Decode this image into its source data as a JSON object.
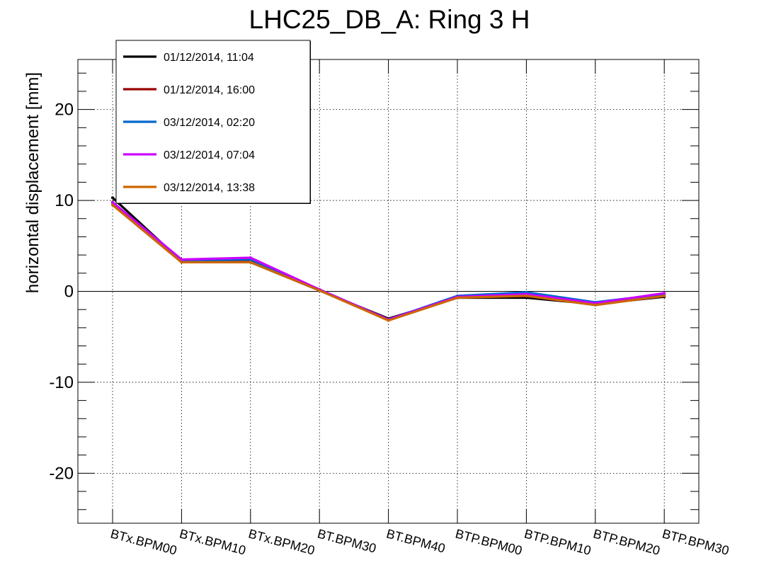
{
  "chart_data": {
    "type": "line",
    "title": "LHC25_DB_A: Ring 3 H",
    "xlabel": "",
    "ylabel": "horizontal displacement [mm]",
    "ylim": [
      -25.5,
      25.5
    ],
    "yticks": [
      -20,
      -10,
      0,
      10,
      20
    ],
    "ytick_labels": [
      "-20",
      "-10",
      "0",
      "10",
      "20"
    ],
    "categories": [
      "BTx.BPM00",
      "BTx.BPM10",
      "BTx.BPM20",
      "BT.BPM30",
      "BT.BPM40",
      "BTP.BPM00",
      "BTP.BPM10",
      "BTP.BPM20",
      "BTP.BPM30"
    ],
    "grid": true,
    "legend_position": "top-left",
    "series": [
      {
        "name": "01/12/2014, 11:04",
        "color": "#000000",
        "values": [
          10.3,
          3.3,
          3.2,
          0.1,
          -3.0,
          -0.7,
          -0.7,
          -1.4,
          -0.6
        ]
      },
      {
        "name": "01/12/2014, 16:00",
        "color": "#990000",
        "values": [
          9.8,
          3.3,
          3.3,
          0.1,
          -3.1,
          -0.7,
          -0.5,
          -1.5,
          -0.5
        ]
      },
      {
        "name": "03/12/2014, 02:20",
        "color": "#0066cc",
        "values": [
          9.7,
          3.4,
          3.5,
          0.2,
          -3.1,
          -0.5,
          -0.1,
          -1.2,
          -0.3
        ]
      },
      {
        "name": "03/12/2014, 07:04",
        "color": "#cc00ff",
        "values": [
          9.8,
          3.5,
          3.7,
          0.2,
          -3.1,
          -0.6,
          -0.3,
          -1.3,
          -0.2
        ]
      },
      {
        "name": "03/12/2014, 13:38",
        "color": "#cc6600",
        "values": [
          9.5,
          3.2,
          3.2,
          0.1,
          -3.2,
          -0.7,
          -0.5,
          -1.5,
          -0.5
        ]
      }
    ]
  }
}
